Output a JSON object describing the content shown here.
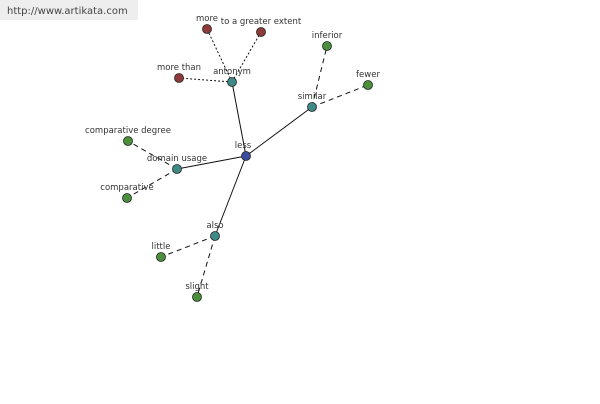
{
  "watermark": "http://www.artikata.com",
  "nodes": [
    {
      "label": "less"
    },
    {
      "label": "antonym"
    },
    {
      "label": "similar"
    },
    {
      "label": "domain usage"
    },
    {
      "label": "also"
    },
    {
      "label": "more"
    },
    {
      "label": "to a greater extent"
    },
    {
      "label": "more than"
    },
    {
      "label": "inferior"
    },
    {
      "label": "fewer"
    },
    {
      "label": "comparative degree"
    },
    {
      "label": "comparative"
    },
    {
      "label": "little"
    },
    {
      "label": "slight"
    }
  ]
}
